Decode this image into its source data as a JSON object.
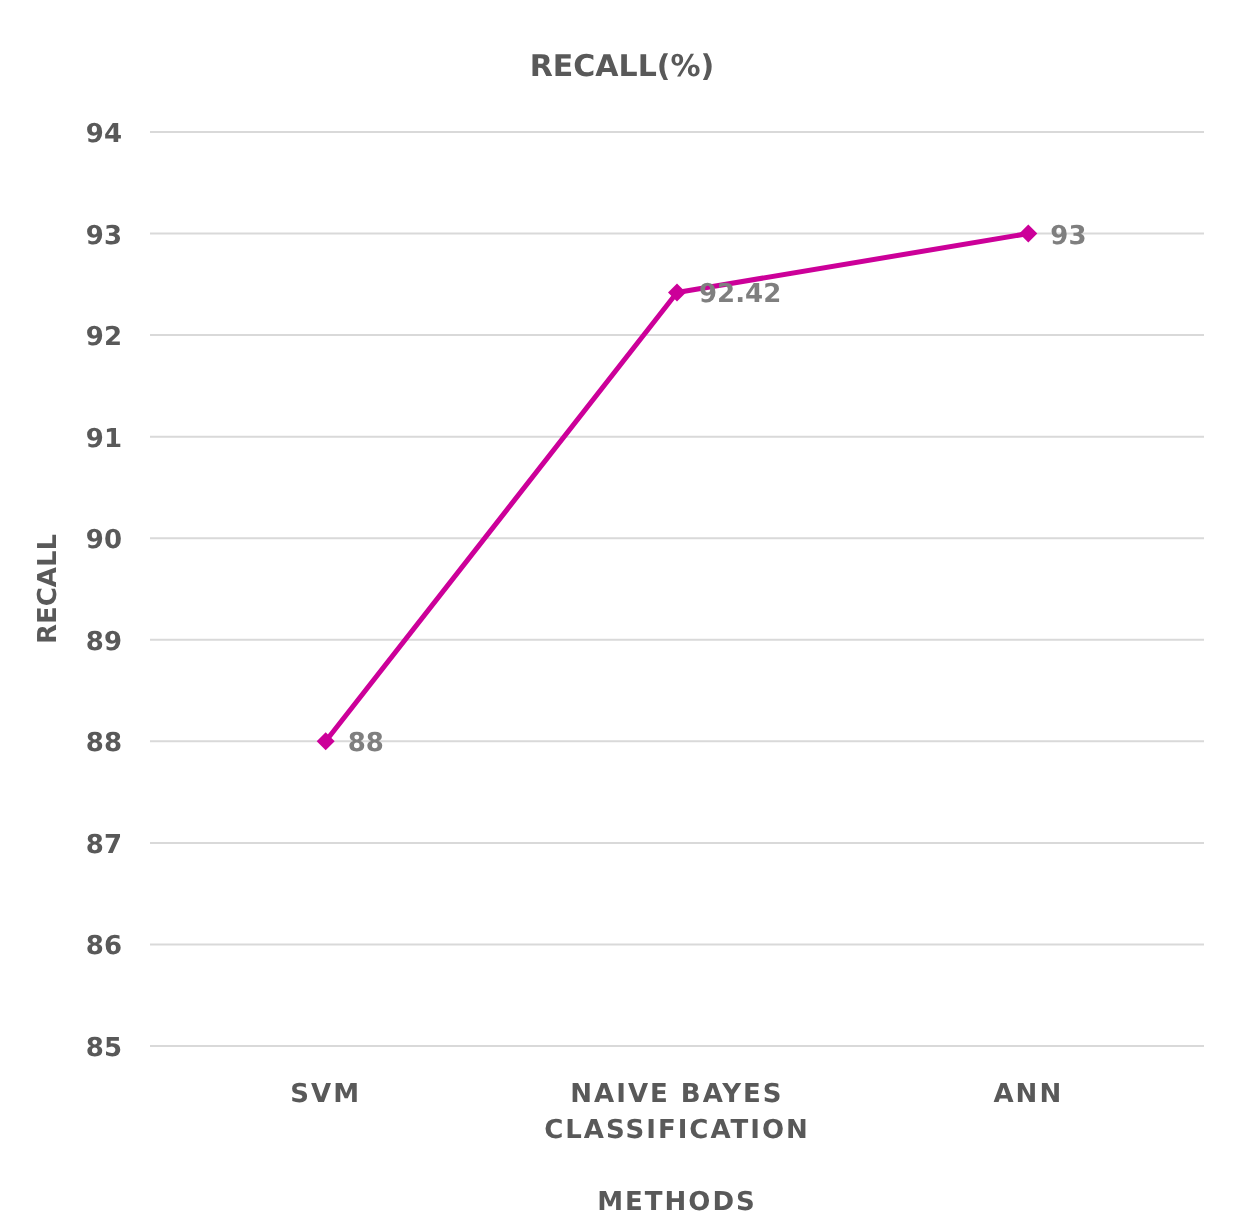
{
  "chart_data": {
    "type": "line",
    "title": "RECALL(%)",
    "xlabel": "METHODS",
    "ylabel": "RECALL",
    "categories": [
      "SVM",
      "NAIVE BAYES CLASSIFICATION",
      "ANN"
    ],
    "series": [
      {
        "color": "#cc0099",
        "values": [
          88,
          92.42,
          93
        ]
      }
    ],
    "ylim": [
      85,
      94
    ],
    "yticks": [
      85,
      86,
      87,
      88,
      89,
      90,
      91,
      92,
      93,
      94
    ],
    "grid": "y",
    "marker": "diamond",
    "line_style": "solid",
    "data_labels": true
  }
}
